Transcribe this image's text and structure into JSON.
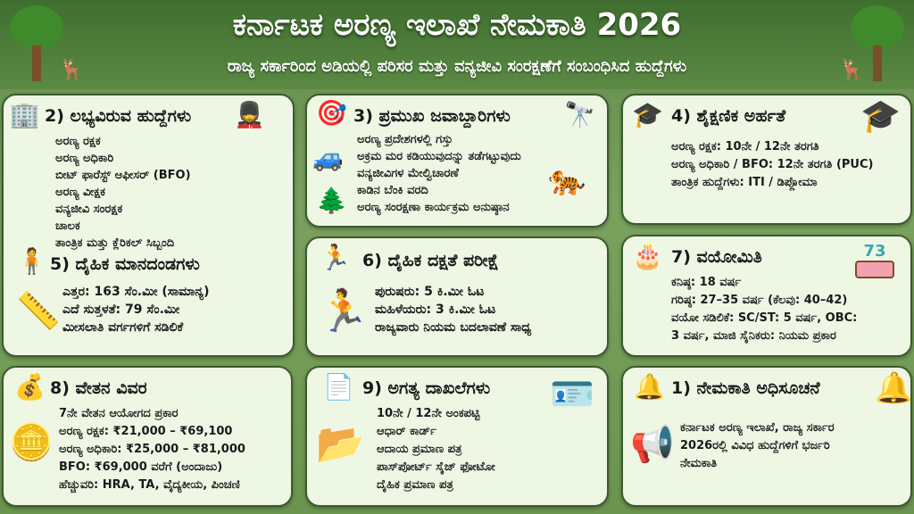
{
  "header": {
    "title": "ಕರ್ನಾಟಕ ಅರಣ್ಯ ಇಲಾಖೆ ನೇಮಕಾತಿ 2026",
    "subtitle": "ರಾಜ್ಯ ಸರ್ಕಾರಿಂದ ಅಡಿಯಲ್ಲಿ ಪರಿಸರ ಮತ್ತು ವನ್ಯಜೀವಿ ಸಂರಕ್ಷಣೆಗೆ ಸಂಬಂಧಿಸಿದ ಹುದ್ದೆಗಳು"
  },
  "posts": {
    "title": "2) ಲಭ್ಯವಿರುವ ಹುದ್ದೆಗಳು",
    "items": [
      "ಅರಣ್ಯ ರಕ್ಷಕ",
      "ಅರಣ್ಯ ಅಧಿಕಾರಿ",
      "ಬೀಟ್ ಫಾರೆಸ್ಟ್ ಆಫೀಸರ್ (BFO)",
      "ಅರಣ್ಯ ವೀಕ್ಷಕ",
      "ವನ್ಯಜೀವಿ ಸಂರಕ್ಷಕ",
      "ಚಾಲಕ",
      "ತಾಂತ್ರಿಕ ಮತ್ತು ಕ್ಲೆರಿಕಲ್ ಸಿಬ್ಬಂದಿ"
    ]
  },
  "physical_standards": {
    "title": "5) ದೈಹಿಕ ಮಾನದಂಡಗಳು",
    "items": [
      "ಎತ್ತರ: 163 ಸೆಂ.ಮೀ (ಸಾಮಾನ್ಯ)",
      "ಎದೆ ಸುತ್ತಳತೆ: 79 ಸೆಂ.ಮೀ",
      "ಮೀಸಲಾತಿ ವರ್ಗಗಳಿಗೆ ಸಡಿಲಿಕೆ"
    ]
  },
  "responsibilities": {
    "title": "3) ಪ್ರಮುಖ ಜವಾಬ್ದಾರಿಗಳು",
    "items": [
      "ಅರಣ್ಯ ಪ್ರದೇಶಗಳಲ್ಲಿ ಗಸ್ತು",
      "ಅಕ್ರಮ ಮರ ಕಡಿಯುವುದನ್ನು ತಡೆಗಟ್ಟುವುದು",
      "ವನ್ಯಜೀವಿಗಳ ಮೇಲ್ವಿಚಾರಣೆ",
      "ಕಾಡಿನ ಬೆಂಕಿ ವರದಿ",
      "ಅರಣ್ಯ ಸಂರಕ್ಷಣಾ ಕಾರ್ಯಕ್ರಮ ಅನುಷ್ಠಾನ"
    ]
  },
  "fitness_test": {
    "title": "6) ದೈಹಿಕ ದಕ್ಷತೆ ಪರೀಕ್ಷೆ",
    "items": [
      "ಪುರುಷರು: 5 ಕಿ.ಮೀ ಓಟ",
      "ಮಹಿಳೆಯರು: 3 ಕಿ.ಮೀ ಓಟ",
      "ರಾಜ್ಯವಾರು ನಿಯಮ ಬದಲಾವಣೆ ಸಾಧ್ಯ"
    ]
  },
  "education": {
    "title": "4) ಶೈಕ್ಷಣಿಕ ಅರ್ಹತೆ",
    "items": [
      "ಅರಣ್ಯ ರಕ್ಷಕ: 10ನೇ / 12ನೇ ತರಗತಿ",
      "ಅರಣ್ಯ ಅಧಿಕಾರಿ / BFO: 12ನೇ ತರಗತಿ (PUC)",
      "ತಾಂತ್ರಿಕ ಹುದ್ದೆಗಳು:   ITI / ಡಿಪ್ಲೋಮಾ"
    ]
  },
  "age_limit": {
    "title": "7) ವಯೋಮಿತಿ",
    "cake_number": "73",
    "items": [
      "ಕನಿಷ್ಠ: 18 ವರ್ಷ",
      "ಗರಿಷ್ಠ: 27–35 ವರ್ಷ (ಕೆಲವು: 40–42)",
      "ವಯೋ ಸಡಿಲಿಕೆ: SC/ST: 5 ವರ್ಷ, OBC:",
      "3 ವರ್ಷ, ಮಾಜಿ ಸೈನಿಕರು: ನಿಯಮ ಪ್ರಕಾರ"
    ]
  },
  "salary": {
    "title": "8) ವೇತನ ವಿವರ",
    "items": [
      "7ನೇ ವೇತನ ಆಯೋಗದ ಪ್ರಕಾರ",
      "ಅರಣ್ಯ ರಕ್ಷಕ: ₹21,000 – ₹69,100",
      "ಅರಣ್ಯ ಅಧಿಕಾರಿ: ₹25,000 – ₹81,000",
      "BFO: ₹69,000 ವರೆಗೆ (ಅಂದಾಜು)",
      "ಹೆಚ್ಚುವರಿ: HRA, TA, ವೈದ್ಯಕೀಯ, ಪಿಂಚಣಿ"
    ]
  },
  "documents": {
    "title": "9) ಅಗತ್ಯ ದಾಖಲೆಗಳು",
    "items": [
      "10ನೇ / 12ನೇ ಅಂಕಪಟ್ಟಿ",
      "ಆಧಾರ್ ಕಾರ್ಡ್",
      "ಆದಾಯ ಪ್ರಮಾಣ ಪತ್ರ",
      "ಪಾಸ್‌ಪೋರ್ಟ್ ಸೈಜ್ ಫೋಟೋ",
      "ದೈಹಿಕ ಪ್ರಮಾಣ ಪತ್ರ"
    ]
  },
  "notification": {
    "title": "1) ನೇಮಕಾತಿ ಅಧಿಸೂಚನೆ",
    "items": [
      "ಕರ್ನಾಟಕ ಅರಣ್ಯ ಇಲಾಖೆ, ರಾಜ್ಯ ಸರ್ಕಾರ",
      "2026ರಲ್ಲಿ ವಿವಿಧ ಹುದ್ದೆಗಳಿಗೆ ಭರ್ಜರಿ",
      "ನೇಮಕಾತಿ"
    ]
  },
  "colors": {
    "background": "#6f9a55",
    "panel": "#eef7e4",
    "border": "#3d5a30"
  }
}
